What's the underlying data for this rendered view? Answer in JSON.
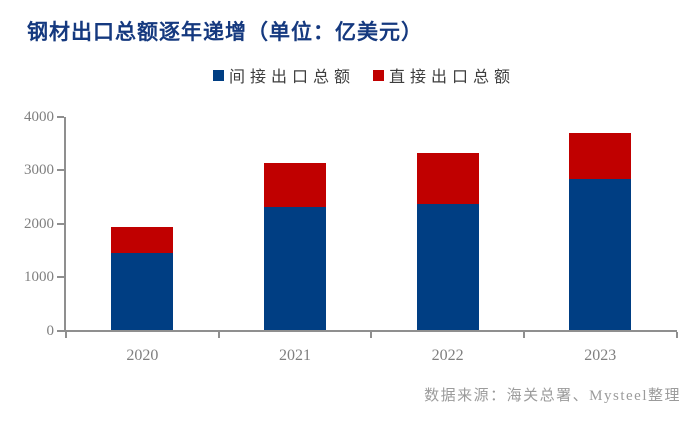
{
  "title": "钢材出口总额逐年递增（单位：亿美元）",
  "legend": {
    "items": [
      {
        "label": "间接出口总额",
        "color": "#003e83"
      },
      {
        "label": "直接出口总额",
        "color": "#c00000"
      }
    ]
  },
  "chart_data": {
    "type": "bar",
    "stacked": true,
    "categories": [
      "2020",
      "2021",
      "2022",
      "2023"
    ],
    "series": [
      {
        "name": "间接出口总额",
        "color": "#003e83",
        "values": [
          1450,
          2310,
          2375,
          2830
        ]
      },
      {
        "name": "直接出口总额",
        "color": "#c00000",
        "values": [
          490,
          830,
          950,
          870
        ]
      }
    ],
    "title": "钢材出口总额逐年递增（单位：亿美元）",
    "xlabel": "",
    "ylabel": "",
    "ylim": [
      0,
      4000
    ],
    "yticks": [
      0,
      1000,
      2000,
      3000,
      4000
    ],
    "grid": false,
    "legend_position": "top"
  },
  "source_note": "数据来源：海关总署、Mysteel整理",
  "colors": {
    "title_text": "#15397f",
    "axis": "#8f8f8f",
    "tick_label": "#7f7f7f",
    "legend_text": "#3d3d3d",
    "source_text": "#9b9b9b",
    "background": "#ffffff"
  }
}
